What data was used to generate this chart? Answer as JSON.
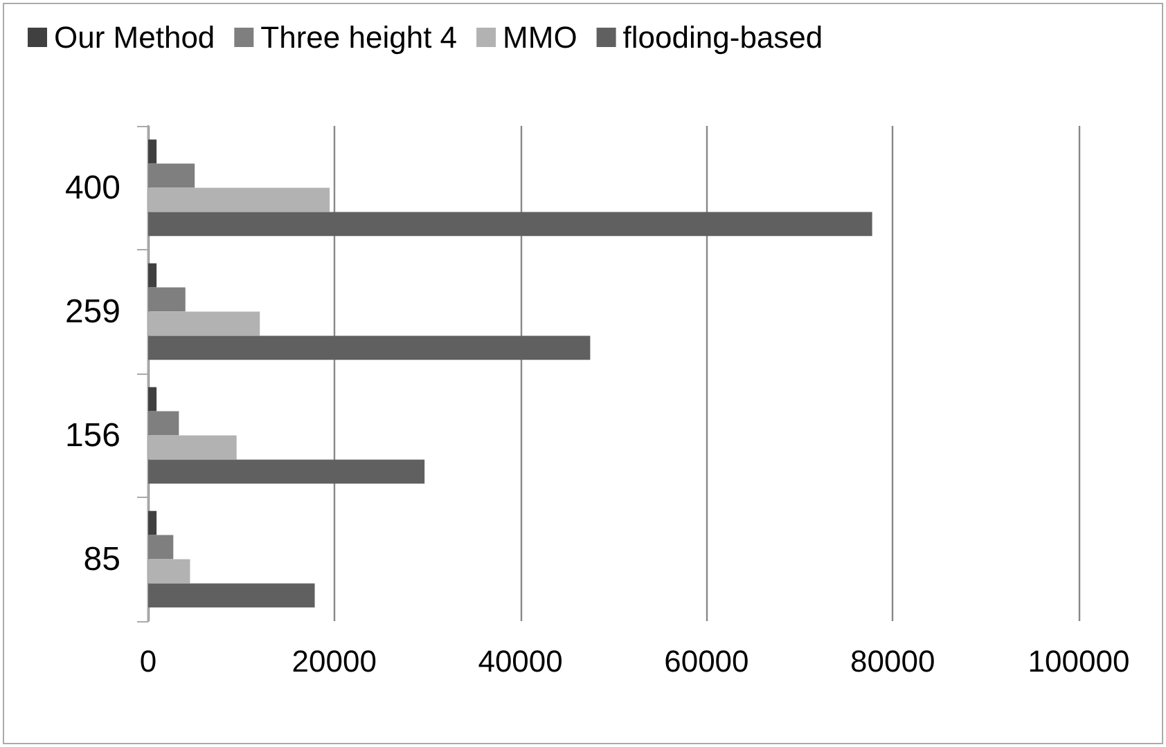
{
  "chart_data": {
    "type": "bar",
    "orientation": "horizontal",
    "categories": [
      "400",
      "259",
      "156",
      "85"
    ],
    "series": [
      {
        "name": "Our Method",
        "color": "#404040",
        "values": [
          900,
          900,
          900,
          900
        ]
      },
      {
        "name": "Three height 4",
        "color": "#7f7f7f",
        "values": [
          5000,
          4000,
          3300,
          2700
        ]
      },
      {
        "name": "MMO",
        "color": "#b2b2b2",
        "values": [
          19500,
          12000,
          9500,
          4500
        ]
      },
      {
        "name": "flooding-based",
        "color": "#606060",
        "values": [
          77800,
          47500,
          29700,
          17900
        ]
      }
    ],
    "xlim": [
      0,
      100000
    ],
    "xticks": [
      0,
      20000,
      40000,
      60000,
      80000,
      100000
    ],
    "grid": "x",
    "legend": "top"
  }
}
